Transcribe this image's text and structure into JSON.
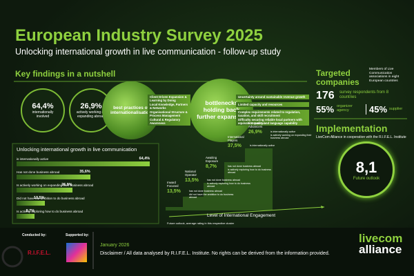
{
  "header": {
    "title": "European Industry Survey 2025",
    "subtitle": "Unlocking international growth in live communication - follow-up study"
  },
  "key_findings": {
    "heading": "Key findings in a nutshell",
    "stats": [
      {
        "value": "64,4%",
        "label": "internationally involved"
      },
      {
        "value": "26,9%",
        "label": "actively working on expanding abroad"
      }
    ],
    "best_practices": {
      "title": "best practices of internationalisation",
      "items": [
        "Client Driven Expansion & Learning by Doing",
        "Local Knowledge, Partners & Networks",
        "Organisational Structure & Process Management",
        "Cultural & Regulatory Awareness"
      ]
    },
    "bottlenecks": {
      "title": "bottlenecks holding back further expansion",
      "items": [
        "Uncertainty around sustainable revenue growth",
        "Limited capacity and resources",
        "Complex requirements related to regulation, taxation, and skill recruitment",
        "Difficulty securing reliable local partners with equivalent quality and language capability"
      ]
    }
  },
  "targeted": {
    "heading": "Targeted companies",
    "description": "Members of Live Communication associations in eight European countries",
    "respondents": {
      "value": "176",
      "label": "survey respondents from 8 countries"
    },
    "split": [
      {
        "value": "55%",
        "label": "organizer agency"
      },
      {
        "value": "45%",
        "label": "supplier"
      }
    ]
  },
  "implementation": {
    "heading": "Implementation",
    "text": "LiveCom Alliance in cooperation with the R.I.F.E.L. Institute"
  },
  "bar_chart": {
    "title": "Unlocking international growth in live communication",
    "categories": [
      "is internationally active",
      "Has not done business abroad",
      "Is actively working on expanding their business abroad",
      "Did not have the ambition to do business abroad",
      "Is actively exploring how to do business abroad"
    ],
    "values": [
      64.4,
      35.6,
      26.9,
      13.5,
      8.7
    ],
    "value_labels": [
      "64,4%",
      "35,6%",
      "26,9%",
      "13,5%",
      "8,7%"
    ]
  },
  "engagement": {
    "axis_label": "Level of International Engagement",
    "clusters": [
      {
        "name": "Inward Focused",
        "value": "13,5%",
        "notes": [
          "has not done business abroad",
          "did not have the ambition to do business abroad"
        ]
      },
      {
        "name": "National Operator",
        "value": "13,5%",
        "notes": [
          "has not done business abroad",
          "is actively exploring how to do business abroad"
        ]
      },
      {
        "name": "Awaiting Exposure",
        "value": "8,7%",
        "notes": [
          "has not done business abroad",
          "is actively exploring how to do business abroad"
        ]
      },
      {
        "name": "International Players",
        "value": "37,5%",
        "notes": [
          "is internationally active"
        ]
      },
      {
        "name": "International Advancers",
        "value": "26,9%",
        "notes": [
          "is internationally active",
          "is actively working on expanding their business abroad"
        ]
      }
    ],
    "outlook": {
      "value": "8,1",
      "label": "Future outlook"
    },
    "footnote": "Future outlook, average rating in this respective cluster"
  },
  "footer": {
    "conducted": "Conducted by:",
    "conductor": "R.I.F.E.L.",
    "supported": "Supported by:",
    "date": "January 2026",
    "disclaimer": "Disclaimer / All data analysed by R.I.F.E.L. Institute. No rights can be derived from the information provided.",
    "brand1": "livecom",
    "brand2": "alliance"
  }
}
